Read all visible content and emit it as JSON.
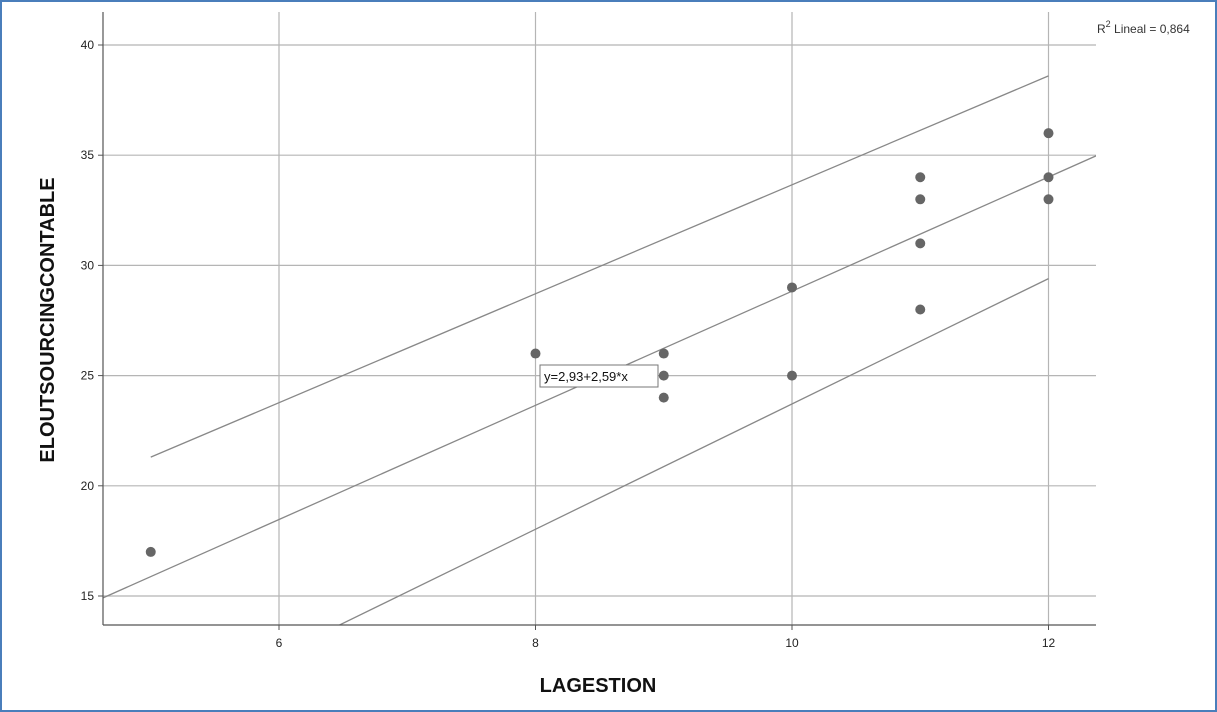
{
  "chart_data": {
    "type": "scatter",
    "xlabel": "LAGESTION",
    "ylabel": "ELOUTSOURCINGCONTABLE",
    "xlim": [
      4.6,
      12.4
    ],
    "ylim": [
      13.6,
      41.5
    ],
    "xticks": [
      6,
      8,
      10,
      12
    ],
    "yticks": [
      15,
      20,
      25,
      30,
      35,
      40
    ],
    "grid": true,
    "points": [
      {
        "x": 5,
        "y": 17
      },
      {
        "x": 8,
        "y": 26
      },
      {
        "x": 9,
        "y": 26
      },
      {
        "x": 9,
        "y": 25
      },
      {
        "x": 9,
        "y": 24
      },
      {
        "x": 10,
        "y": 29
      },
      {
        "x": 10,
        "y": 25
      },
      {
        "x": 11,
        "y": 34
      },
      {
        "x": 11,
        "y": 33
      },
      {
        "x": 11,
        "y": 31
      },
      {
        "x": 11,
        "y": 28
      },
      {
        "x": 12,
        "y": 36
      },
      {
        "x": 12,
        "y": 34
      },
      {
        "x": 12,
        "y": 33
      }
    ],
    "fit_line": {
      "intercept": 2.93,
      "slope": 2.59,
      "label": "y=2,93+2,59*x"
    },
    "prediction_interval": {
      "upper": [
        [
          5,
          21.3
        ],
        [
          12,
          38.6
        ]
      ],
      "lower": [
        [
          5,
          9.5
        ],
        [
          12,
          29.4
        ]
      ]
    },
    "r2_label_prefix": "R",
    "r2_label_sup": "2",
    "r2_label_rest": " Lineal = 0,864",
    "colors": {
      "points": "#666666",
      "lines": "#888888",
      "grid": "#b5b5b5",
      "axis": "#555555"
    }
  }
}
